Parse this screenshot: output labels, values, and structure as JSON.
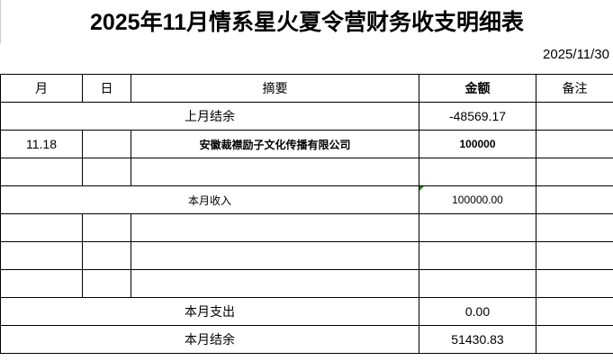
{
  "title": "2025年11月情系星火夏令营财务收支明细表",
  "date": "2025/11/30",
  "headers": {
    "month": "月",
    "day": "日",
    "summary": "摘要",
    "amount": "金额",
    "remark": "备注"
  },
  "rows": {
    "prev_balance": {
      "label": "上月结余",
      "amount": "-48569.17"
    },
    "entry1": {
      "month": "11.18",
      "day": "",
      "summary": "安徽裁襟励子文化传播有限公司",
      "amount": "100000"
    },
    "income": {
      "label": "本月收入",
      "amount": "100000.00"
    },
    "expense": {
      "label": "本月支出",
      "amount": "0.00"
    },
    "balance": {
      "label": "本月结余",
      "amount": "51430.83"
    }
  }
}
